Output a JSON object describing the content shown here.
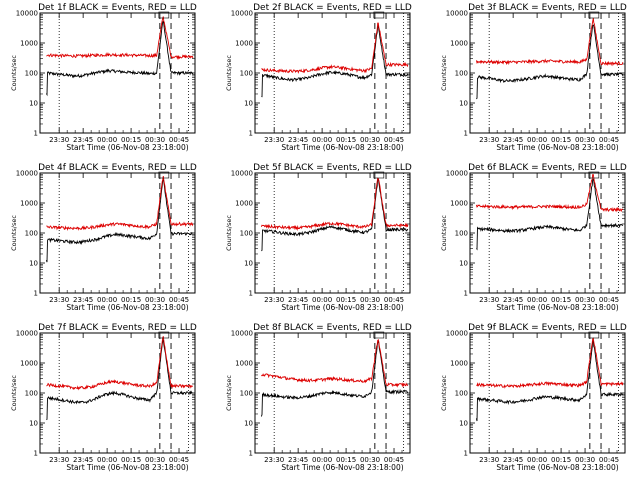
{
  "figure": {
    "panels": 9,
    "layout": "3x3 grid"
  },
  "chart_data": [
    {
      "type": "line",
      "title": "Det 1f BLACK = Events, RED = LLD",
      "xlabel": "Start Time (06-Nov-08 23:18:00)",
      "ylabel": "Counts/sec",
      "yscale": "log",
      "ylim": [
        1,
        10000
      ],
      "x_tick_labels": [
        "23:30",
        "23:45",
        "00:00",
        "00:15",
        "00:30",
        "00:45"
      ],
      "y_tick_labels": [
        "1",
        "10",
        "100",
        "1000",
        "10000"
      ],
      "dotted_lines_at": [
        "23:30",
        "00:51"
      ],
      "dashed_lines_at": [
        "00:33",
        "00:40"
      ],
      "series": [
        {
          "color": "#000000",
          "baseline": [
            100,
            95,
            90,
            85,
            80,
            82,
            90,
            100,
            110,
            120,
            115,
            110,
            105,
            105,
            100,
            95,
            100
          ],
          "peak": 6000
        },
        {
          "color": "#dd0000",
          "baseline": [
            400,
            390,
            380,
            375,
            370,
            370,
            380,
            390,
            400,
            410,
            405,
            400,
            395,
            390,
            385,
            380,
            385
          ],
          "peak": 8000,
          "tail": 350
        }
      ]
    },
    {
      "type": "line",
      "title": "Det 2f BLACK = Events, RED = LLD",
      "xlabel": "Start Time (06-Nov-08 23:18:00)",
      "ylabel": "Counts/sec",
      "yscale": "log",
      "ylim": [
        1,
        10000
      ],
      "x_tick_labels": [
        "23:30",
        "23:45",
        "00:00",
        "00:15",
        "00:30",
        "00:45"
      ],
      "y_tick_labels": [
        "1",
        "10",
        "100",
        "1000",
        "10000"
      ],
      "dotted_lines_at": [
        "23:30",
        "00:51"
      ],
      "dashed_lines_at": [
        "00:33",
        "00:40"
      ],
      "series": [
        {
          "color": "#000000",
          "baseline": [
            85,
            80,
            70,
            65,
            60,
            60,
            65,
            70,
            85,
            95,
            105,
            100,
            95,
            85,
            75,
            70,
            90
          ],
          "peak": 4000
        },
        {
          "color": "#dd0000",
          "baseline": [
            130,
            125,
            120,
            118,
            115,
            115,
            118,
            125,
            135,
            150,
            160,
            155,
            145,
            135,
            125,
            120,
            140
          ],
          "peak": 5000,
          "tail": 190
        }
      ]
    },
    {
      "type": "line",
      "title": "Det 3f BLACK = Events, RED = LLD",
      "xlabel": "Start Time (06-Nov-08 23:18:00)",
      "ylabel": "Counts/sec",
      "yscale": "log",
      "ylim": [
        1,
        10000
      ],
      "x_tick_labels": [
        "23:30",
        "23:45",
        "00:00",
        "00:15",
        "00:30",
        "00:45"
      ],
      "y_tick_labels": [
        "1",
        "10",
        "100",
        "1000",
        "10000"
      ],
      "dotted_lines_at": [
        "23:30",
        "00:51"
      ],
      "dashed_lines_at": [
        "00:33",
        "00:40"
      ],
      "series": [
        {
          "color": "#000000",
          "baseline": [
            75,
            70,
            65,
            60,
            55,
            55,
            58,
            62,
            68,
            75,
            80,
            75,
            70,
            65,
            62,
            60,
            90
          ],
          "peak": 5000
        },
        {
          "color": "#dd0000",
          "baseline": [
            240,
            238,
            235,
            232,
            230,
            230,
            232,
            236,
            240,
            245,
            250,
            248,
            244,
            240,
            236,
            232,
            280
          ],
          "peak": 7000,
          "tail": 210
        }
      ]
    },
    {
      "type": "line",
      "title": "Det 4f BLACK = Events, RED = LLD",
      "xlabel": "Start Time (06-Nov-08 23:18:00)",
      "ylabel": "Counts/sec",
      "yscale": "log",
      "ylim": [
        1,
        10000
      ],
      "x_tick_labels": [
        "23:30",
        "23:45",
        "00:00",
        "00:15",
        "00:30",
        "00:45"
      ],
      "y_tick_labels": [
        "1",
        "10",
        "100",
        "1000",
        "10000"
      ],
      "dotted_lines_at": [
        "23:30",
        "00:51"
      ],
      "dashed_lines_at": [
        "00:33",
        "00:40"
      ],
      "series": [
        {
          "color": "#000000",
          "baseline": [
            60,
            58,
            55,
            52,
            50,
            50,
            55,
            60,
            70,
            80,
            90,
            85,
            80,
            75,
            70,
            65,
            95
          ],
          "peak": 7000
        },
        {
          "color": "#dd0000",
          "baseline": [
            160,
            155,
            150,
            148,
            145,
            145,
            150,
            160,
            175,
            190,
            200,
            195,
            185,
            175,
            165,
            160,
            200
          ],
          "peak": 8000,
          "tail": 200
        }
      ]
    },
    {
      "type": "line",
      "title": "Det 5f BLACK = Events, RED = LLD",
      "xlabel": "Start Time (06-Nov-08 23:18:00)",
      "ylabel": "Counts/sec",
      "yscale": "log",
      "ylim": [
        1,
        10000
      ],
      "x_tick_labels": [
        "23:30",
        "23:45",
        "00:00",
        "00:15",
        "00:30",
        "00:45"
      ],
      "y_tick_labels": [
        "1",
        "10",
        "100",
        "1000",
        "10000"
      ],
      "dotted_lines_at": [
        "23:30",
        "00:51"
      ],
      "dashed_lines_at": [
        "00:33",
        "00:40"
      ],
      "series": [
        {
          "color": "#000000",
          "baseline": [
            120,
            115,
            110,
            100,
            95,
            92,
            95,
            105,
            120,
            140,
            160,
            150,
            135,
            120,
            110,
            105,
            130
          ],
          "peak": 7000
        },
        {
          "color": "#dd0000",
          "baseline": [
            170,
            165,
            160,
            155,
            150,
            148,
            152,
            162,
            178,
            195,
            210,
            205,
            190,
            175,
            165,
            160,
            190
          ],
          "peak": 8000,
          "tail": 180
        }
      ]
    },
    {
      "type": "line",
      "title": "Det 6f BLACK = Events, RED = LLD",
      "xlabel": "Start Time (06-Nov-08 23:18:00)",
      "ylabel": "Counts/sec",
      "yscale": "log",
      "ylim": [
        1,
        10000
      ],
      "x_tick_labels": [
        "23:30",
        "23:45",
        "00:00",
        "00:15",
        "00:30",
        "00:45"
      ],
      "y_tick_labels": [
        "1",
        "10",
        "100",
        "1000",
        "10000"
      ],
      "dotted_lines_at": [
        "23:30",
        "00:51"
      ],
      "dashed_lines_at": [
        "00:33",
        "00:40"
      ],
      "series": [
        {
          "color": "#000000",
          "baseline": [
            140,
            135,
            130,
            125,
            120,
            118,
            120,
            128,
            140,
            150,
            160,
            155,
            145,
            135,
            128,
            120,
            180
          ],
          "peak": 7000
        },
        {
          "color": "#dd0000",
          "baseline": [
            780,
            770,
            760,
            750,
            740,
            735,
            735,
            740,
            750,
            760,
            770,
            765,
            755,
            745,
            735,
            725,
            900
          ],
          "peak": 9000,
          "tail": 600
        }
      ]
    },
    {
      "type": "line",
      "title": "Det 7f BLACK = Events, RED = LLD",
      "xlabel": "Start Time (06-Nov-08 23:18:00)",
      "ylabel": "Counts/sec",
      "yscale": "log",
      "ylim": [
        1,
        10000
      ],
      "x_tick_labels": [
        "23:30",
        "23:45",
        "00:00",
        "00:15",
        "00:30",
        "00:45"
      ],
      "y_tick_labels": [
        "1",
        "10",
        "100",
        "1000",
        "10000"
      ],
      "dotted_lines_at": [
        "23:30",
        "00:51"
      ],
      "dashed_lines_at": [
        "00:33",
        "00:40"
      ],
      "series": [
        {
          "color": "#000000",
          "baseline": [
            70,
            65,
            60,
            55,
            50,
            48,
            52,
            62,
            80,
            95,
            100,
            90,
            78,
            68,
            62,
            58,
            100
          ],
          "peak": 7000
        },
        {
          "color": "#dd0000",
          "baseline": [
            190,
            180,
            170,
            160,
            150,
            148,
            155,
            170,
            200,
            230,
            240,
            220,
            200,
            185,
            175,
            170,
            210
          ],
          "peak": 8000,
          "tail": 170
        }
      ]
    },
    {
      "type": "line",
      "title": "Det 8f BLACK = Events, RED = LLD",
      "xlabel": "Start Time (06-Nov-08 23:18:00)",
      "ylabel": "Counts/sec",
      "yscale": "log",
      "ylim": [
        1,
        10000
      ],
      "x_tick_labels": [
        "23:30",
        "23:45",
        "00:00",
        "00:15",
        "00:30",
        "00:45"
      ],
      "y_tick_labels": [
        "1",
        "10",
        "100",
        "1000",
        "10000"
      ],
      "dotted_lines_at": [
        "23:30",
        "00:51"
      ],
      "dashed_lines_at": [
        "00:33",
        "00:40"
      ],
      "series": [
        {
          "color": "#000000",
          "baseline": [
            90,
            85,
            80,
            75,
            72,
            70,
            72,
            78,
            88,
            100,
            105,
            100,
            92,
            85,
            80,
            78,
            110
          ],
          "peak": 6000
        },
        {
          "color": "#dd0000",
          "baseline": [
            420,
            390,
            360,
            330,
            300,
            280,
            270,
            265,
            270,
            285,
            300,
            295,
            280,
            265,
            255,
            250,
            300
          ],
          "peak": 7000,
          "tail": 190
        }
      ]
    },
    {
      "type": "line",
      "title": "Det 9f BLACK = Events, RED = LLD",
      "xlabel": "Start Time (06-Nov-08 23:18:00)",
      "ylabel": "Counts/sec",
      "yscale": "log",
      "ylim": [
        1,
        10000
      ],
      "x_tick_labels": [
        "23:30",
        "23:45",
        "00:00",
        "00:15",
        "00:30",
        "00:45"
      ],
      "y_tick_labels": [
        "1",
        "10",
        "100",
        "1000",
        "10000"
      ],
      "dotted_lines_at": [
        "23:30",
        "00:51"
      ],
      "dashed_lines_at": [
        "00:33",
        "00:40"
      ],
      "series": [
        {
          "color": "#000000",
          "baseline": [
            65,
            62,
            58,
            55,
            52,
            50,
            52,
            56,
            62,
            70,
            75,
            72,
            68,
            64,
            60,
            58,
            90
          ],
          "peak": 6000
        },
        {
          "color": "#dd0000",
          "baseline": [
            190,
            185,
            180,
            175,
            172,
            170,
            172,
            178,
            188,
            200,
            210,
            205,
            198,
            190,
            184,
            180,
            230
          ],
          "peak": 8000,
          "tail": 200
        }
      ]
    }
  ]
}
